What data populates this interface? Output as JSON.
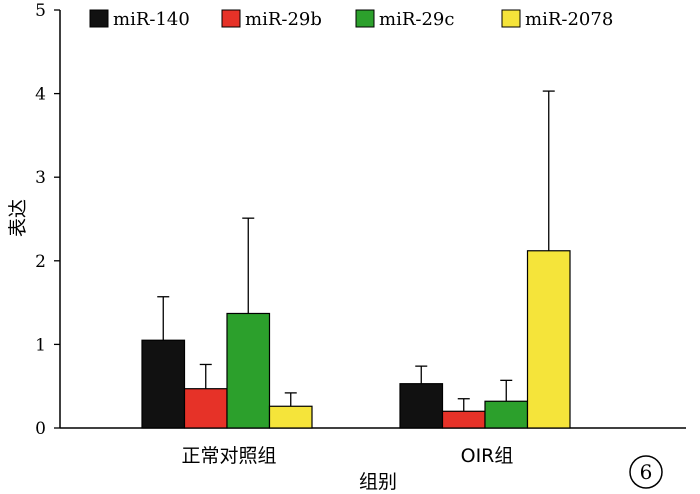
{
  "chart_data": {
    "type": "bar",
    "xlabel": "组别",
    "ylabel": "表达",
    "ylim": [
      0,
      5
    ],
    "y_ticks": [
      "0",
      "1",
      "2",
      "3",
      "4",
      "5"
    ],
    "categories": [
      "正常对照组",
      "OIR组"
    ],
    "series": [
      {
        "name": "miR-140",
        "color": "#111111",
        "values": [
          1.05,
          0.53
        ],
        "errors": [
          0.52,
          0.21
        ]
      },
      {
        "name": "miR-29b",
        "color": "#e63228",
        "values": [
          0.47,
          0.2
        ],
        "errors": [
          0.29,
          0.15
        ]
      },
      {
        "name": "miR-29c",
        "color": "#2ca02c",
        "values": [
          1.37,
          0.32
        ],
        "errors": [
          1.14,
          0.25
        ]
      },
      {
        "name": "miR-2078",
        "color": "#f5e43a",
        "values": [
          0.26,
          2.12
        ],
        "errors": [
          0.16,
          1.91
        ]
      }
    ],
    "legend_position": "top",
    "grid": false,
    "panel_label": "6"
  }
}
